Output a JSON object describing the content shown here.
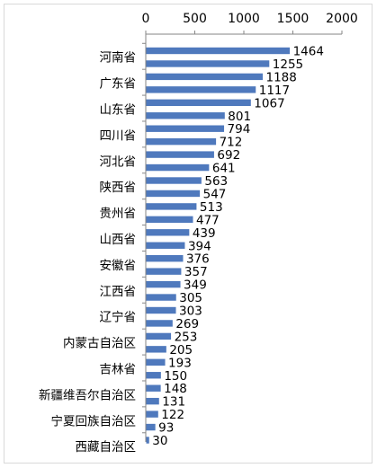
{
  "chart_data": {
    "type": "bar",
    "orientation": "horizontal",
    "title": "",
    "xlabel": "",
    "ylabel": "",
    "xlim": [
      0,
      2000
    ],
    "x_ticks": [
      "0",
      "500",
      "1000",
      "1500",
      "2000"
    ],
    "x_axis_position": "top",
    "grid": false,
    "bar_color": "#4f79bd",
    "category_labels": [
      "河南省",
      "广东省",
      "山东省",
      "四川省",
      "河北省",
      "陕西省",
      "贵州省",
      "山西省",
      "安徽省",
      "江西省",
      "辽宁省",
      "内蒙古自治区",
      "吉林省",
      "新疆维吾尔自治区",
      "宁夏回族自治区",
      "西藏自治区"
    ],
    "values": [
      1464,
      1255,
      1188,
      1117,
      1067,
      801,
      794,
      712,
      692,
      641,
      563,
      547,
      513,
      477,
      439,
      394,
      376,
      357,
      349,
      305,
      303,
      269,
      253,
      205,
      193,
      150,
      148,
      131,
      122,
      93,
      30
    ]
  }
}
